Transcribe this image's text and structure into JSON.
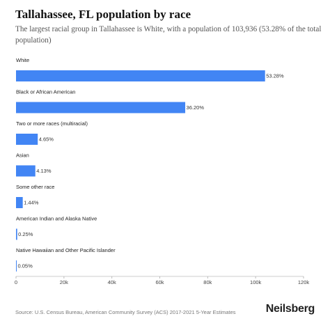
{
  "chart_data": {
    "type": "bar",
    "orientation": "horizontal",
    "title": "Tallahassee, FL population by race",
    "subtitle": "The largest racial group in Tallahassee is White, with a population of 103,936 (53.28% of the total population)",
    "categories": [
      "White",
      "Black or African American",
      "Two or more races (multiracial)",
      "Asian",
      "Some other race",
      "American Indian and Alaska Native",
      "Native Hawaiian and Other Pacific Islander"
    ],
    "values": [
      103936,
      70620,
      9070,
      8060,
      2810,
      490,
      100
    ],
    "labels": [
      "53.28%",
      "36.20%",
      "4.65%",
      "4.13%",
      "1.44%",
      "0.25%",
      "0.05%"
    ],
    "xlim": [
      0,
      120000
    ],
    "xticks": [
      0,
      20000,
      40000,
      60000,
      80000,
      100000,
      120000
    ],
    "xtick_labels": [
      "0",
      "20k",
      "40k",
      "60k",
      "80k",
      "100k",
      "120k"
    ],
    "bar_color": "#4285f4",
    "grid": false,
    "legend": "none"
  },
  "footer": {
    "source": "Source: U.S. Census Bureau, American Community Survey (ACS) 2017-2021 5-Year Estimates",
    "brand": "Neilsberg"
  }
}
